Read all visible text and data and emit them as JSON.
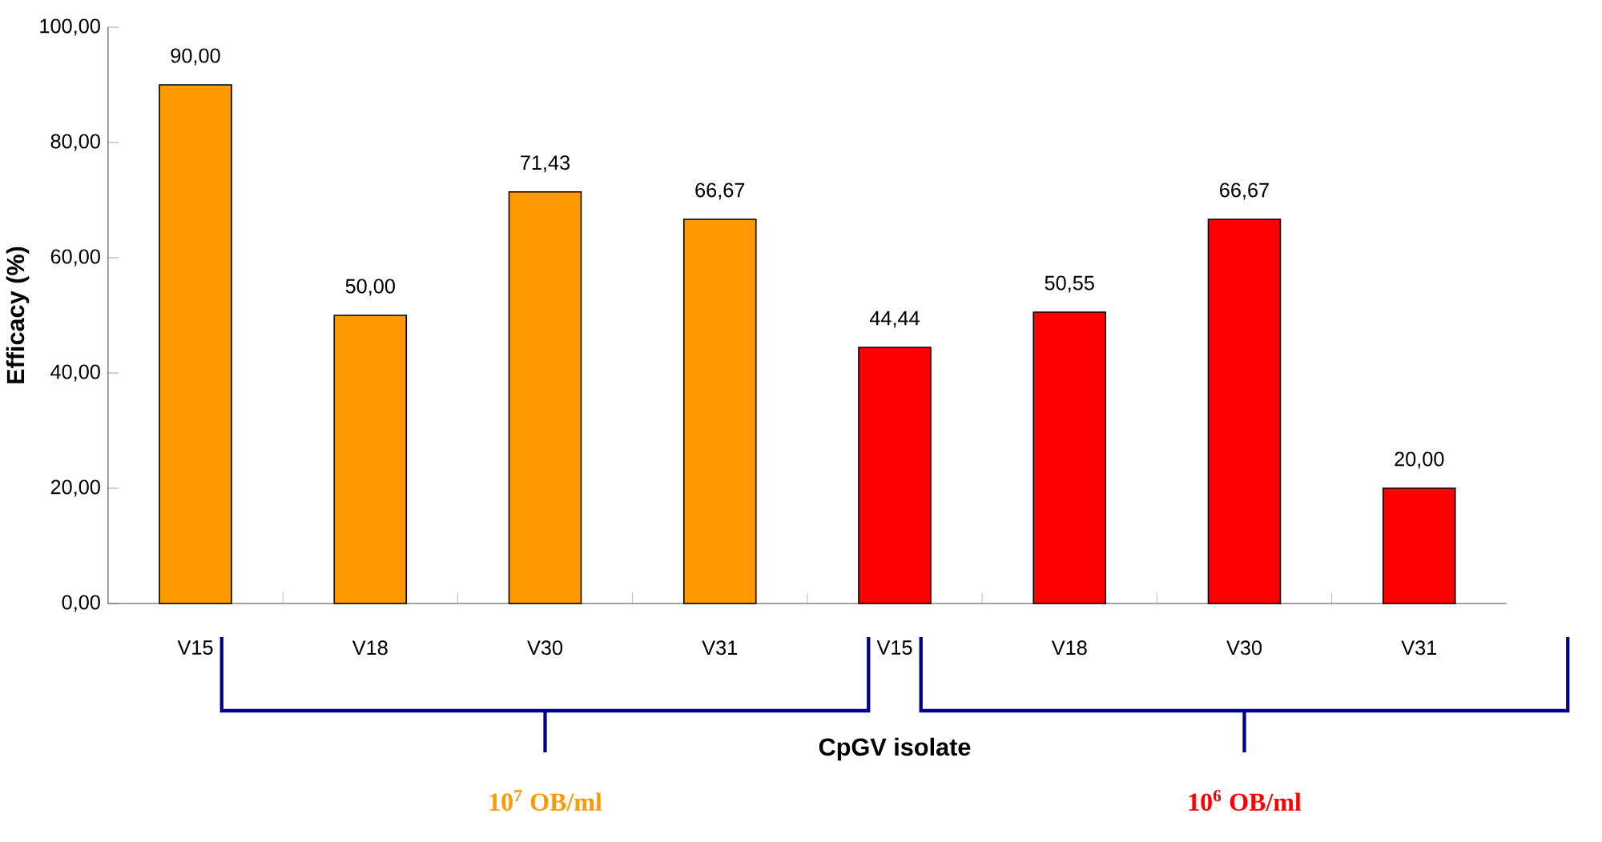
{
  "chart_data": {
    "type": "bar",
    "xlabel": "CpGV isolate",
    "ylabel": "Efficacy (%)",
    "categories": [
      "V15",
      "V18",
      "V30",
      "V31",
      "V15",
      "V18",
      "V30",
      "V31"
    ],
    "values": [
      90.0,
      50.0,
      71.43,
      66.67,
      44.44,
      50.55,
      66.67,
      20.0
    ],
    "colors": [
      "#ff9900",
      "#ff9900",
      "#ff9900",
      "#ff9900",
      "#ff0000",
      "#ff0000",
      "#ff0000",
      "#ff0000"
    ],
    "value_labels": [
      "90,00",
      "50,00",
      "71,43",
      "66,67",
      "44,44",
      "50,55",
      "66,67",
      "20,00"
    ],
    "ylim": [
      0,
      100
    ],
    "yticks": [
      {
        "value": 0,
        "label": "0,00"
      },
      {
        "value": 20,
        "label": "20,00"
      },
      {
        "value": 40,
        "label": "40,00"
      },
      {
        "value": 60,
        "label": "60,00"
      },
      {
        "value": 80,
        "label": "80,00"
      },
      {
        "value": 100,
        "label": "100,00"
      }
    ],
    "annotations": [
      "10$^{7}$ OB/ml",
      "10$^{6}$ OB/ml"
    ]
  }
}
